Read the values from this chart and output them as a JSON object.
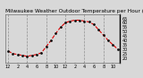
{
  "title": "Milwaukee Weather Outdoor Temperature per Hour (Last 24 Hours)",
  "hours": [
    0,
    1,
    2,
    3,
    4,
    5,
    6,
    7,
    8,
    9,
    10,
    11,
    12,
    13,
    14,
    15,
    16,
    17,
    18,
    19,
    20,
    21,
    22,
    23
  ],
  "temps": [
    28,
    25,
    24,
    23,
    22,
    23,
    24,
    26,
    33,
    40,
    48,
    55,
    60,
    62,
    63,
    63,
    62,
    61,
    58,
    52,
    46,
    40,
    35,
    30
  ],
  "line_color": "#dd0000",
  "marker_color": "#111111",
  "bg_color": "#d8d8d8",
  "plot_bg_color": "#d8d8d8",
  "grid_color": "#888888",
  "text_color": "#000000",
  "tick_color": "#000000",
  "ylim": [
    15,
    70
  ],
  "yticks": [
    20,
    25,
    30,
    35,
    40,
    45,
    50,
    55,
    60,
    65
  ],
  "ytick_labels": [
    "20",
    "25",
    "30",
    "35",
    "40",
    "45",
    "50",
    "55",
    "60",
    "65"
  ],
  "xtick_positions": [
    0,
    2,
    4,
    6,
    8,
    10,
    12,
    14,
    16,
    18,
    20,
    22
  ],
  "xtick_labels": [
    "12",
    "2",
    "4",
    "6",
    "8",
    "10",
    "12",
    "2",
    "4",
    "6",
    "8",
    "10"
  ],
  "vgrid_positions": [
    0,
    4,
    8,
    12,
    16,
    20
  ],
  "title_fontsize": 4.2,
  "axis_fontsize": 3.5
}
